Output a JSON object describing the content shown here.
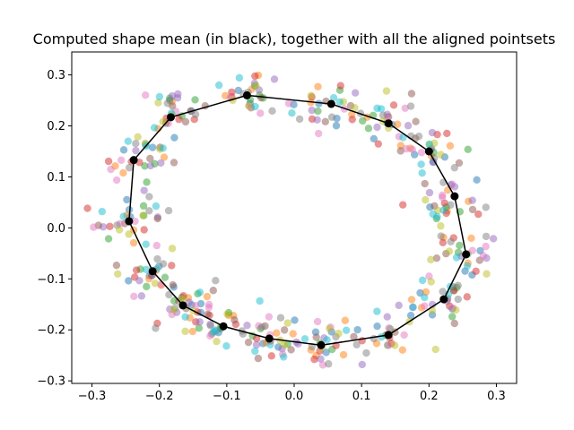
{
  "chart_data": {
    "type": "scatter",
    "title": "Computed shape mean (in black), together with all the aligned pointsets",
    "xlabel": "",
    "ylabel": "",
    "xlim": [
      -0.33,
      0.33
    ],
    "ylim": [
      -0.305,
      0.345
    ],
    "xticks": [
      -0.3,
      -0.2,
      -0.1,
      0.0,
      0.1,
      0.2,
      0.3
    ],
    "yticks": [
      -0.3,
      -0.2,
      -0.1,
      0.0,
      0.1,
      0.2,
      0.3
    ],
    "xtick_labels": [
      "−0.3",
      "−0.2",
      "−0.1",
      "0.0",
      "0.1",
      "0.2",
      "0.3"
    ],
    "ytick_labels": [
      "−0.3",
      "−0.2",
      "−0.1",
      "0.0",
      "0.1",
      "0.2",
      "0.3"
    ],
    "grid": false,
    "mean_shape": {
      "color": "#000000",
      "points": [
        [
          -0.07,
          0.26
        ],
        [
          0.055,
          0.243
        ],
        [
          0.14,
          0.205
        ],
        [
          0.2,
          0.15
        ],
        [
          0.238,
          0.062
        ],
        [
          0.255,
          -0.052
        ],
        [
          0.222,
          -0.14
        ],
        [
          0.14,
          -0.21
        ],
        [
          0.04,
          -0.23
        ],
        [
          -0.037,
          -0.217
        ],
        [
          -0.105,
          -0.193
        ],
        [
          -0.165,
          -0.152
        ],
        [
          -0.21,
          -0.085
        ],
        [
          -0.245,
          0.013
        ],
        [
          -0.238,
          0.133
        ],
        [
          -0.183,
          0.217
        ]
      ]
    },
    "pointset_colors": [
      "#1f77b4",
      "#ff7f0e",
      "#2ca02c",
      "#d62728",
      "#9467bd",
      "#8c564b",
      "#e377c2",
      "#7f7f7f",
      "#bcbd22",
      "#17becf"
    ],
    "pointset_count": 10,
    "pointset_spread": 0.025
  }
}
